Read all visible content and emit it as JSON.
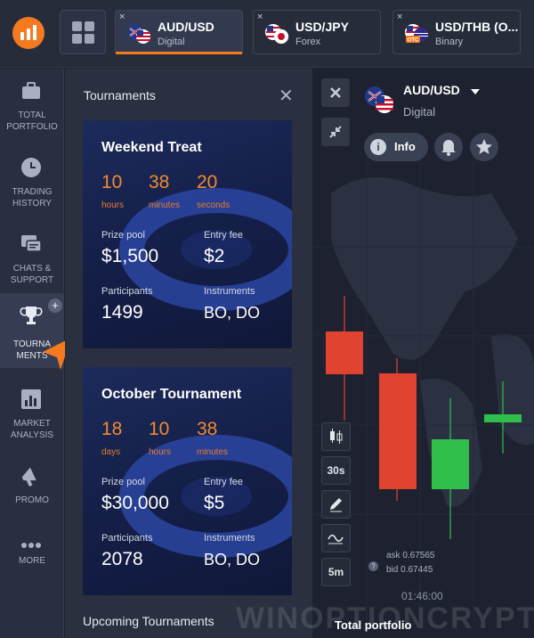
{
  "header": {
    "tabs": [
      {
        "pair": "AUD/USD",
        "type": "Digital",
        "active": true
      },
      {
        "pair": "USD/JPY",
        "type": "Forex",
        "active": false
      },
      {
        "pair": "USD/THB (O...",
        "type": "Binary",
        "active": false
      }
    ],
    "close_glyph": "×"
  },
  "sidebar": {
    "items": [
      {
        "label": "TOTAL PORTFOLIO",
        "icon": "briefcase-icon"
      },
      {
        "label": "TRADING HISTORY",
        "icon": "clock-icon"
      },
      {
        "label": "CHATS & SUPPORT",
        "icon": "chat-icon"
      },
      {
        "label": "TOURNA MENTS",
        "icon": "trophy-icon",
        "active": true
      },
      {
        "label": "MARKET ANALYSIS",
        "icon": "bar-chart-icon"
      },
      {
        "label": "PROMO",
        "icon": "megaphone-icon"
      },
      {
        "label": "MORE",
        "icon": "more-dots-icon"
      }
    ],
    "plus_badge": "+"
  },
  "panel": {
    "title": "Tournaments",
    "close": "✕",
    "cards": [
      {
        "title": "Weekend Treat",
        "countdown": [
          {
            "value": "10",
            "unit": "hours"
          },
          {
            "value": "38",
            "unit": "minutes"
          },
          {
            "value": "20",
            "unit": "seconds"
          }
        ],
        "prize_label": "Prize pool",
        "prize": "$1,500",
        "fee_label": "Entry fee",
        "fee": "$2",
        "participants_label": "Participants",
        "participants": "1499",
        "instruments_label": "Instruments",
        "instruments": "BO, DO"
      },
      {
        "title": "October Tournament",
        "countdown": [
          {
            "value": "18",
            "unit": "days"
          },
          {
            "value": "10",
            "unit": "hours"
          },
          {
            "value": "38",
            "unit": "minutes"
          }
        ],
        "prize_label": "Prize pool",
        "prize": "$30,000",
        "fee_label": "Entry fee",
        "fee": "$5",
        "participants_label": "Participants",
        "participants": "2078",
        "instruments_label": "Instruments",
        "instruments": "BO, DO"
      }
    ],
    "upcoming": "Upcoming Tournaments"
  },
  "chart": {
    "pair": "AUD/USD",
    "type": "Digital",
    "info_label": "Info",
    "tools": [
      "candles",
      "30s",
      "pencil",
      "indicators",
      "5m"
    ],
    "ask": "ask 0.67565",
    "bid": "bid 0.67445",
    "time": "01:46:00",
    "total_portfolio": "Total portfolio",
    "help": "?"
  },
  "watermark": "WINOPTIONCRYPTO.COM",
  "colors": {
    "accent": "#f47a1f",
    "bull": "#2fbf4a",
    "bear": "#e0432f"
  }
}
